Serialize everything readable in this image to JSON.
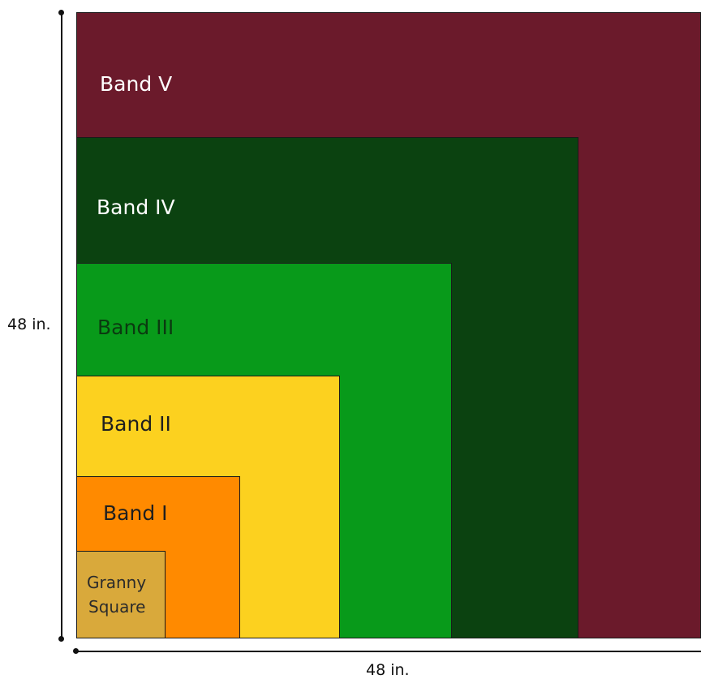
{
  "bands": [
    {
      "id": "band-v",
      "label": "Band V",
      "color": "#6b1a2b",
      "text_color": "#ffffff"
    },
    {
      "id": "band-iv",
      "label": "Band IV",
      "color": "#0b4210",
      "text_color": "#ffffff"
    },
    {
      "id": "band-iii",
      "label": "Band III",
      "color": "#089a1a",
      "text_color": "#0b3a10"
    },
    {
      "id": "band-ii",
      "label": "Band II",
      "color": "#fcd11f",
      "text_color": "#1f1f1f"
    },
    {
      "id": "band-i",
      "label": "Band I",
      "color": "#ff8a00",
      "text_color": "#1f1f1f"
    },
    {
      "id": "granny-square",
      "label_line1": "Granny",
      "label_line2": "Square",
      "color": "#d9a93b",
      "text_color": "#2b2b2b"
    }
  ],
  "dimensions": {
    "height": "48 in.",
    "width": "48 in."
  }
}
